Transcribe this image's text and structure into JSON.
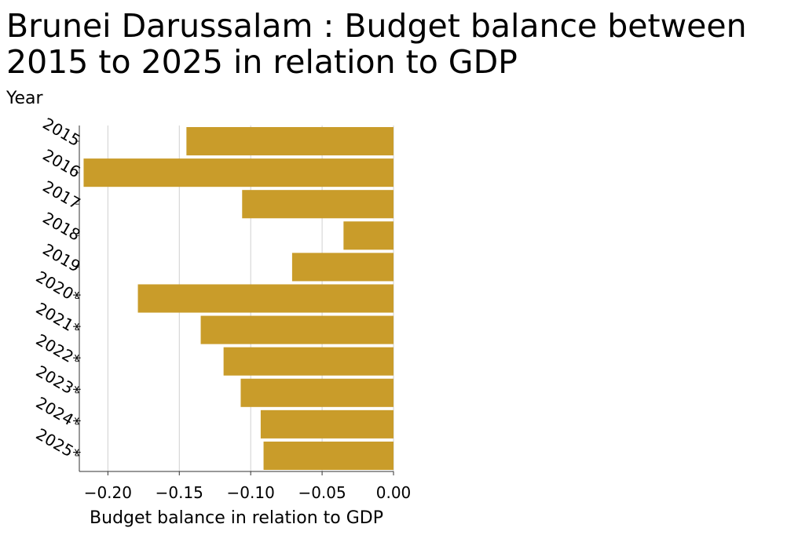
{
  "chart_data": {
    "type": "bar",
    "orientation": "horizontal",
    "title": "Brunei Darussalam : Budget balance between 2015 to 2025 in relation to GDP",
    "title_lines": [
      "Brunei Darussalam : Budget balance between",
      "2015 to 2025 in relation to GDP"
    ],
    "xlabel": "Budget balance in relation to GDP",
    "ylabel": "Year",
    "categories": [
      "2015",
      "2016",
      "2017",
      "2018",
      "2019",
      "2020*",
      "2021*",
      "2022*",
      "2023*",
      "2024*",
      "2025*"
    ],
    "values": [
      -0.145,
      -0.217,
      -0.106,
      -0.035,
      -0.071,
      -0.179,
      -0.135,
      -0.119,
      -0.107,
      -0.093,
      -0.091
    ],
    "xlim": [
      -0.22,
      0.0
    ],
    "xticks": [
      -0.2,
      -0.15,
      -0.1,
      -0.05,
      0.0
    ],
    "xtick_labels": [
      "−0.20",
      "−0.15",
      "−0.10",
      "−0.05",
      "0.00"
    ],
    "grid": "vertical",
    "legend": "none",
    "bar_color": "#c99c2a"
  }
}
